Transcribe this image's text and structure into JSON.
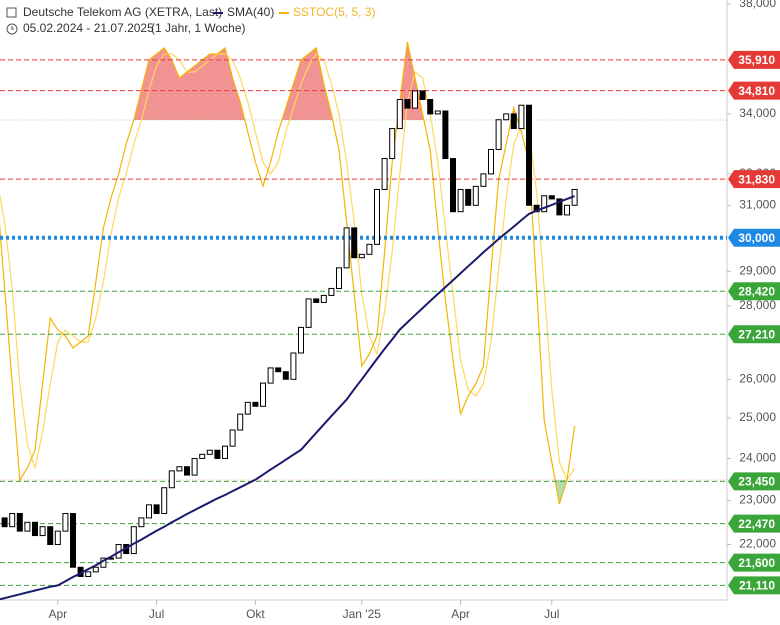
{
  "chart_data": {
    "type": "candlestick",
    "title": "Deutsche Telekom AG (XETRA, Last)",
    "subtitle": "05.02.2024 - 21.07.2025",
    "period": "(1 Jahr, 1 Woche)",
    "log_scale": true,
    "ylim": [
      20800,
      38150
    ],
    "yticks": [
      {
        "value": 38000,
        "label": "38,000"
      },
      {
        "value": 34000,
        "label": "34,000"
      },
      {
        "value": 32000,
        "label": "32,000"
      },
      {
        "value": 31000,
        "label": "31,000"
      },
      {
        "value": 29000,
        "label": "29,000"
      },
      {
        "value": 28000,
        "label": "28,000"
      },
      {
        "value": 26000,
        "label": "26,000"
      },
      {
        "value": 25000,
        "label": "25,000"
      },
      {
        "value": 24000,
        "label": "24,000"
      },
      {
        "value": 23000,
        "label": "23,000"
      },
      {
        "value": 22000,
        "label": "22,000"
      }
    ],
    "y2lim": [
      0,
      100
    ],
    "bands": [
      20,
      80
    ],
    "categories": [
      null,
      null,
      null,
      null,
      null,
      null,
      null,
      null,
      null,
      null,
      null,
      null,
      null,
      null,
      null,
      null,
      null,
      null,
      null,
      null,
      null,
      null,
      null,
      null,
      null,
      null,
      null,
      null,
      null,
      null,
      null,
      null,
      null,
      null,
      null,
      null,
      null,
      null,
      null,
      null,
      null,
      null,
      null,
      null,
      null,
      null,
      null,
      null,
      null,
      null,
      null,
      null,
      null,
      null,
      null,
      null,
      null,
      null,
      null,
      null,
      null,
      null,
      null,
      null,
      null,
      null,
      null,
      null,
      null,
      null,
      null,
      null,
      null,
      null,
      null,
      null,
      null
    ],
    "xticks": [
      {
        "value": 8,
        "label": "Apr"
      },
      {
        "value": 21,
        "label": "Jul"
      },
      {
        "value": 34,
        "label": "Okt"
      },
      {
        "value": 48,
        "label": "Jan '25"
      },
      {
        "value": 61,
        "label": "Apr"
      },
      {
        "value": 73,
        "label": "Jul"
      }
    ],
    "up_color": "#ffffff",
    "down_color": "#000000",
    "open": [
      22800,
      22600,
      22400,
      22700,
      22300,
      22500,
      22200,
      22400,
      22000,
      22300,
      22700,
      21500,
      21300,
      21400,
      21500,
      21700,
      21700,
      22000,
      21800,
      22400,
      22600,
      22900,
      22700,
      23300,
      23700,
      23800,
      23600,
      24000,
      24100,
      24200,
      24000,
      24300,
      24700,
      25100,
      25400,
      25300,
      25900,
      26300,
      26200,
      26000,
      26700,
      27400,
      28200,
      28100,
      28300,
      28500,
      29100,
      30300,
      29400,
      29500,
      29800,
      31500,
      32500,
      33500,
      34500,
      34200,
      34800,
      34500,
      34000,
      34100,
      32500,
      30800,
      31500,
      31000,
      31600,
      32000,
      32800,
      33800,
      34000,
      33500,
      34300,
      31000,
      30800,
      31300,
      31200,
      30700,
      31000
    ],
    "close": [
      22600,
      22400,
      22700,
      22300,
      22500,
      22200,
      22400,
      22000,
      22300,
      22700,
      21500,
      21300,
      21400,
      21500,
      21700,
      21700,
      22000,
      21800,
      22400,
      22600,
      22900,
      22700,
      23300,
      23700,
      23800,
      23600,
      24000,
      24100,
      24200,
      24000,
      24300,
      24700,
      25100,
      25400,
      25300,
      25900,
      26300,
      26200,
      26000,
      26700,
      27400,
      28200,
      28100,
      28300,
      28500,
      29100,
      30300,
      29400,
      29500,
      29800,
      31500,
      32500,
      33500,
      34500,
      34200,
      34800,
      34500,
      34000,
      34100,
      32500,
      30800,
      31500,
      31000,
      31600,
      32000,
      32800,
      33800,
      34000,
      33500,
      34300,
      31000,
      30800,
      31300,
      31200,
      30700,
      31000,
      31500
    ],
    "series": [
      {
        "name": "SMA(40)",
        "color": "#1a1a6e",
        "values": [
          20800,
          20840,
          20880,
          20920,
          20960,
          21000,
          21040,
          21080,
          21110,
          21200,
          21290,
          21370,
          21460,
          21540,
          21640,
          21730,
          21830,
          21920,
          22020,
          22110,
          22210,
          22310,
          22400,
          22500,
          22590,
          22690,
          22780,
          22870,
          22960,
          23050,
          23130,
          23220,
          23310,
          23400,
          23490,
          23610,
          23730,
          23850,
          23970,
          24090,
          24210,
          24420,
          24630,
          24840,
          25050,
          25260,
          25470,
          25740,
          26000,
          26270,
          26540,
          26810,
          27070,
          27340,
          27540,
          27740,
          27940,
          28140,
          28340,
          28540,
          28740,
          28940,
          29150,
          29350,
          29560,
          29760,
          29960,
          30150,
          30340,
          30540,
          30730,
          30830,
          30920,
          31010,
          31110,
          31200,
          31290
        ]
      },
      {
        "name": "SSTOC(5, 5, 3)",
        "color": "#f5b400",
        "signal_color": "#ffd75e",
        "axis": "y2",
        "values": [
          68,
          52,
          36,
          20,
          22,
          25,
          36,
          47,
          45,
          44,
          42,
          43,
          44,
          53,
          62,
          67,
          71,
          76,
          80,
          85,
          90,
          91,
          92,
          90,
          87,
          88,
          89,
          90,
          91,
          91,
          92,
          87,
          83,
          78,
          73,
          69,
          73,
          78,
          82,
          86,
          90,
          91,
          92,
          86,
          81,
          75,
          63,
          51,
          39,
          41,
          44,
          58,
          73,
          83,
          93,
          87,
          81,
          75,
          62,
          50,
          40,
          31,
          34,
          36,
          39,
          55,
          70,
          76,
          82,
          78,
          73,
          52,
          30,
          23,
          16,
          20,
          29
        ],
        "signal": [
          70,
          63,
          52,
          36,
          26,
          22,
          28,
          36,
          43,
          45,
          44,
          43,
          43,
          47,
          53,
          61,
          67,
          71,
          76,
          80,
          85,
          89,
          91,
          91,
          90,
          88,
          88,
          89,
          90,
          91,
          91,
          90,
          87,
          83,
          78,
          73,
          71,
          73,
          78,
          82,
          86,
          89,
          91,
          90,
          86,
          81,
          73,
          63,
          51,
          44,
          41,
          48,
          58,
          71,
          83,
          88,
          87,
          81,
          73,
          62,
          51,
          40,
          35,
          34,
          36,
          43,
          55,
          67,
          76,
          79,
          78,
          68,
          52,
          35,
          23,
          20,
          22
        ]
      }
    ],
    "levels": [
      {
        "value": 35910,
        "label": "35,910",
        "color": "#e53935"
      },
      {
        "value": 34810,
        "label": "34,810",
        "color": "#e53935"
      },
      {
        "value": 31830,
        "label": "31,830",
        "color": "#e53935"
      },
      {
        "value": 30000,
        "label": "30,000",
        "color": "#1e88e5"
      },
      {
        "value": 28420,
        "label": "28,420",
        "color": "#3aa63a"
      },
      {
        "value": 27210,
        "label": "27,210",
        "color": "#3aa63a"
      },
      {
        "value": 23450,
        "label": "23,450",
        "color": "#3aa63a"
      },
      {
        "value": 22470,
        "label": "22,470",
        "color": "#3aa63a"
      },
      {
        "value": 21600,
        "label": "21,600",
        "color": "#3aa63a"
      },
      {
        "value": 21110,
        "label": "21,110",
        "color": "#3aa63a"
      }
    ],
    "overbought_color": "#f08080",
    "oversold_color": "#a5d6a7"
  }
}
